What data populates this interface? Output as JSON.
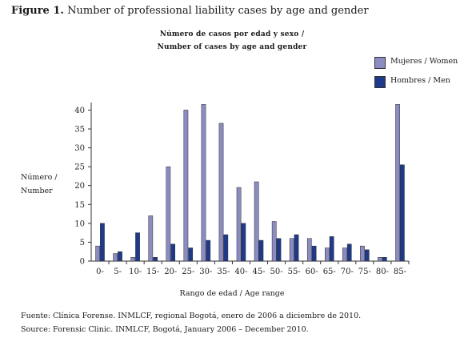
{
  "figure": {
    "label": "Figure 1.",
    "caption": "Number of professional liability cases by age and gender"
  },
  "chart_data": {
    "type": "bar",
    "title_line1": "Número de casos por edad y sexo /",
    "title_line2": "Number of cases by age and gender",
    "ylabel_line1": "Número /",
    "ylabel_line2": "Number",
    "xlabel": "Rango de edad / Age range",
    "ylim": [
      0,
      42
    ],
    "yticks": [
      0,
      5,
      10,
      15,
      20,
      25,
      30,
      35,
      40
    ],
    "categories": [
      "0-",
      "5-",
      "10-",
      "15-",
      "20-",
      "25-",
      "30-",
      "35-",
      "40-",
      "45-",
      "50-",
      "55-",
      "60-",
      "65-",
      "70-",
      "75-",
      "80-",
      "85-"
    ],
    "series": [
      {
        "name": "Mujeres / Women",
        "color": "#8b8cc2",
        "values": [
          4,
          2,
          1,
          12,
          25,
          40,
          41.5,
          36.5,
          19.5,
          21,
          10.5,
          6,
          6,
          3.5,
          3.5,
          4,
          1,
          41.5
        ]
      },
      {
        "name": "Hombres / Men",
        "color": "#1f3a8a",
        "values": [
          10,
          2.5,
          7.5,
          1,
          4.5,
          3.5,
          5.5,
          7,
          10,
          5.5,
          6,
          7,
          4,
          6.5,
          4.5,
          3,
          1,
          25.5
        ]
      }
    ],
    "legend_position": "top-right",
    "grid": false
  },
  "source": {
    "line1": "Fuente: Clínica Forense. INMLCF, regional Bogotá, enero de 2006 a diciembre de 2010.",
    "line2": "Source: Forensic Clinic. INMLCF, Bogotá, January 2006 – December 2010."
  }
}
